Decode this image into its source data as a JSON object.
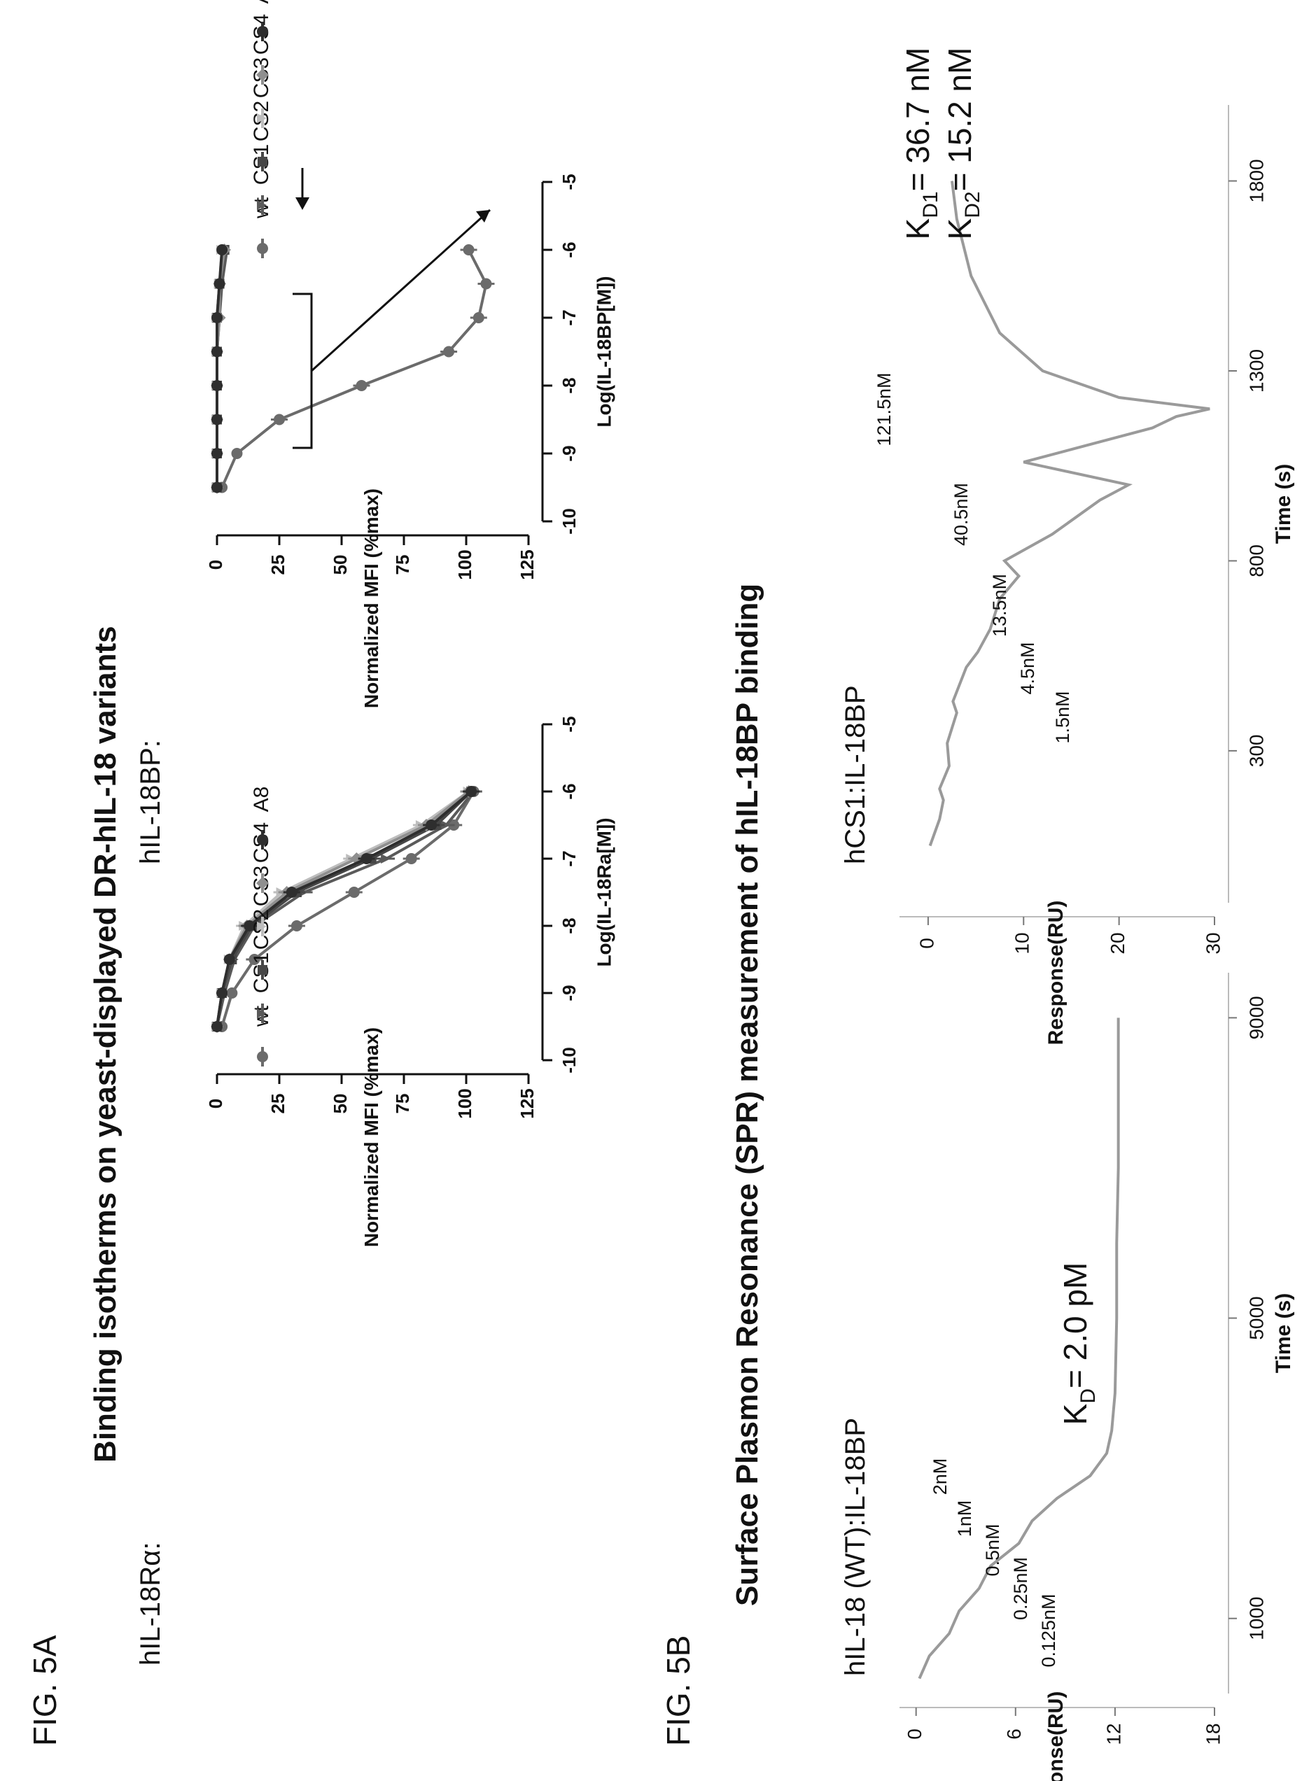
{
  "fig_5a_label": "FIG. 5A",
  "fig_5b_label": "FIG. 5B",
  "panel_a_title": "Binding isotherms on yeast-displayed DR-hIL-18 variants",
  "panel_b_title": "Surface Plasmon Resonance (SPR) measurement of hIL-18BP binding",
  "colors": {
    "wt": "#6b6b6b",
    "CS1": "#5a5a5a",
    "CS2": "#474747",
    "CS3": "#bdbdbd",
    "CS4": "#8f8f8f",
    "A8": "#2e2e2e",
    "trace": "#9a9a9a"
  },
  "chart_data": [
    {
      "id": "isotherm_ra",
      "type": "line",
      "subtitle": "hIL-18Rα:",
      "xlabel": "Log(IL-18Ra[M])",
      "ylabel": "Normalized MFI (%max)",
      "xlim": [
        -10,
        -5
      ],
      "ylim": [
        0,
        125
      ],
      "xticks": [
        "-10",
        "-9",
        "-8",
        "-7",
        "-6",
        "-5"
      ],
      "yticks": [
        "0",
        "25",
        "50",
        "75",
        "100",
        "125"
      ],
      "legend": [
        "wt",
        "CS1",
        "CS2",
        "CS3",
        "CS4",
        "A8"
      ],
      "legend_position": "right",
      "x": [
        -9.5,
        -9.0,
        -8.5,
        -8.0,
        -7.5,
        -7.0,
        -6.5,
        -6.0
      ],
      "series": [
        {
          "name": "wt",
          "values": [
            2,
            6,
            15,
            32,
            55,
            78,
            95,
            103
          ]
        },
        {
          "name": "CS1",
          "values": [
            0,
            3,
            7,
            15,
            35,
            68,
            92,
            103
          ]
        },
        {
          "name": "CS2",
          "values": [
            0,
            2,
            6,
            14,
            32,
            62,
            88,
            102
          ]
        },
        {
          "name": "CS3",
          "values": [
            0,
            2,
            5,
            11,
            26,
            54,
            82,
            101
          ]
        },
        {
          "name": "CS4",
          "values": [
            0,
            2,
            5,
            12,
            28,
            56,
            84,
            101
          ]
        },
        {
          "name": "A8",
          "values": [
            0,
            2,
            5,
            13,
            30,
            60,
            86,
            102
          ]
        }
      ]
    },
    {
      "id": "isotherm_bp",
      "type": "line",
      "subtitle": "hIL-18BP:",
      "xlabel": "Log(IL-18BP[M])",
      "ylabel": "Normalized MFI (%max)",
      "xlim": [
        -10,
        -5
      ],
      "ylim": [
        0,
        125
      ],
      "xticks": [
        "-10",
        "-9",
        "-8",
        "-7",
        "-6",
        "-5"
      ],
      "yticks": [
        "0",
        "25",
        "50",
        "75",
        "100",
        "125"
      ],
      "legend": [
        "wt",
        "CS1",
        "CS2",
        "CS3",
        "CS4",
        "A8"
      ],
      "legend_position": "right",
      "x": [
        -9.5,
        -9.0,
        -8.5,
        -8.0,
        -7.5,
        -7.0,
        -6.5,
        -6.0
      ],
      "series": [
        {
          "name": "wt",
          "values": [
            2,
            8,
            25,
            58,
            93,
            105,
            108,
            101
          ]
        },
        {
          "name": "CS1",
          "values": [
            0,
            0,
            0,
            0,
            0,
            1,
            2,
            4
          ]
        },
        {
          "name": "CS2",
          "values": [
            0,
            0,
            0,
            0,
            0,
            0,
            1,
            3
          ]
        },
        {
          "name": "CS3",
          "values": [
            0,
            0,
            0,
            0,
            0,
            0,
            1,
            2
          ]
        },
        {
          "name": "CS4",
          "values": [
            0,
            0,
            0,
            0,
            0,
            1,
            1,
            3
          ]
        },
        {
          "name": "A8",
          "values": [
            0,
            0,
            0,
            0,
            0,
            0,
            1,
            2
          ]
        }
      ],
      "annotation": "wt vs. CS1–A8 (brackets/arrows)"
    },
    {
      "id": "spr_wt",
      "type": "line",
      "subtitle": "hIL-18 (WT):IL-18BP",
      "xlabel": "Time (s)",
      "ylabel": "Response(RU)",
      "xlim": [
        0,
        9600
      ],
      "ylim": [
        -1,
        18
      ],
      "xticks": [
        "1000",
        "5000",
        "9000"
      ],
      "yticks": [
        "0",
        "6",
        "12",
        "18"
      ],
      "x": [
        200,
        500,
        800,
        1100,
        1400,
        1700,
        2000,
        2300,
        2600,
        2900,
        3200,
        3500,
        4000,
        5000,
        6000,
        7000,
        8000,
        9000
      ],
      "values": [
        0.2,
        0.8,
        2.0,
        2.6,
        3.8,
        4.5,
        6.2,
        7.0,
        8.5,
        10.5,
        11.5,
        11.8,
        12.0,
        12.1,
        12.1,
        12.2,
        12.2,
        12.2
      ],
      "injections": [
        "0.125nM",
        "0.25nM",
        "0.5nM",
        "1nM",
        "2nM"
      ],
      "kd_prefix": "K",
      "kd_sub": "D",
      "kd_value": "= 2.0 pM"
    },
    {
      "id": "spr_cs1",
      "type": "line",
      "subtitle": "hCS1:IL-18BP",
      "xlabel": "Time (s)",
      "ylabel": "Response(RU)",
      "xlim": [
        -100,
        2000
      ],
      "ylim": [
        -3,
        30
      ],
      "xticks": [
        "300",
        "800",
        "1300",
        "1800"
      ],
      "yticks": [
        "0",
        "10",
        "20",
        "30"
      ],
      "x": [
        50,
        120,
        170,
        200,
        260,
        320,
        400,
        430,
        520,
        560,
        620,
        700,
        760,
        800,
        870,
        960,
        1000,
        1060,
        1150,
        1180,
        1200,
        1230,
        1300,
        1400,
        1550,
        1700,
        1800
      ],
      "values": [
        0.2,
        1.2,
        1.6,
        1.2,
        2.2,
        2.0,
        3.0,
        2.6,
        4.0,
        5.2,
        6.5,
        7.5,
        9.5,
        8.0,
        13.0,
        18.0,
        21.0,
        10.0,
        23.5,
        26.0,
        29.5,
        20.0,
        12.0,
        7.5,
        4.5,
        3.0,
        2.5
      ],
      "injections": [
        "1.5nM",
        "4.5nM",
        "13.5nM",
        "40.5nM",
        "121.5nM"
      ],
      "kd1_prefix": "K",
      "kd1_sub": "D1",
      "kd1_value": "= 36.7 nM",
      "kd2_prefix": "K",
      "kd2_sub": "D2",
      "kd2_value": "= 15.2 nM"
    }
  ]
}
